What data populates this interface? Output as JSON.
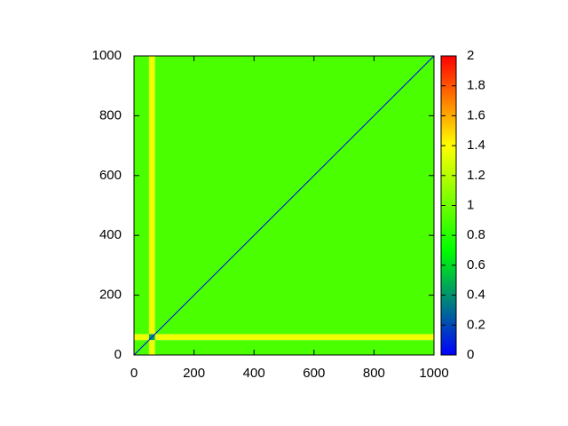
{
  "chart_data": {
    "type": "heatmap",
    "x_edges": [
      0,
      50,
      70,
      1000
    ],
    "y_edges": [
      0,
      50,
      70,
      1000
    ],
    "matrix": [
      [
        0.9,
        1.35,
        0.9
      ],
      [
        1.35,
        0.45,
        1.35
      ],
      [
        0.9,
        1.35,
        0.9
      ]
    ],
    "diagonal_value": 0,
    "xlim": [
      0,
      1000
    ],
    "xticks": [
      0,
      200,
      400,
      600,
      800,
      1000
    ],
    "ylim": [
      0,
      1000
    ],
    "yticks": [
      0,
      200,
      400,
      600,
      800,
      1000
    ],
    "zlim": [
      0,
      2
    ],
    "zticks": [
      0,
      0.2,
      0.4,
      0.6,
      0.8,
      1,
      1.2,
      1.4,
      1.6,
      1.8,
      2
    ],
    "colormap": [
      {
        "value": 0,
        "color": "#0000ff"
      },
      {
        "value": 0.7,
        "color": "#00ff00"
      },
      {
        "value": 1.4,
        "color": "#ffff00"
      },
      {
        "value": 2,
        "color": "#ff0000"
      }
    ]
  }
}
